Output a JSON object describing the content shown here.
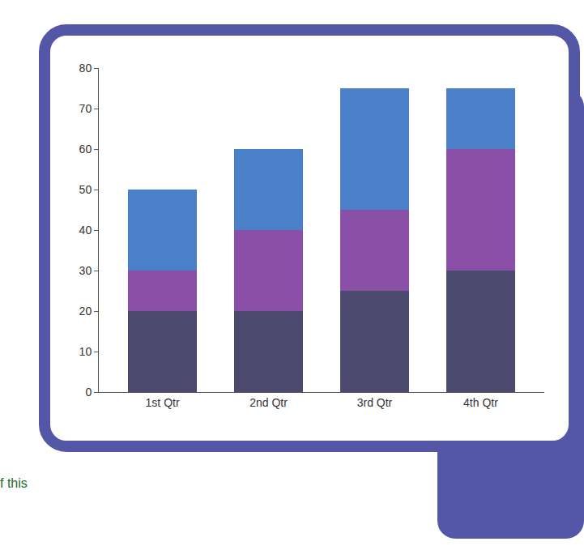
{
  "chart_data": {
    "type": "bar",
    "stacked": true,
    "grid": false,
    "categories": [
      "1st Qtr",
      "2nd Qtr",
      "3rd Qtr",
      "4th Qtr"
    ],
    "series": [
      {
        "color": "#4b4a6e",
        "values": [
          20,
          20,
          25,
          30
        ]
      },
      {
        "color": "#8a4fa6",
        "values": [
          10,
          20,
          20,
          30
        ]
      },
      {
        "color": "#4a80c8",
        "values": [
          20,
          20,
          30,
          15
        ]
      }
    ],
    "ylim": [
      0,
      80
    ],
    "yticks": [
      0,
      10,
      20,
      30,
      40,
      50,
      60,
      70,
      80
    ],
    "annotations": [
      "f this"
    ]
  }
}
